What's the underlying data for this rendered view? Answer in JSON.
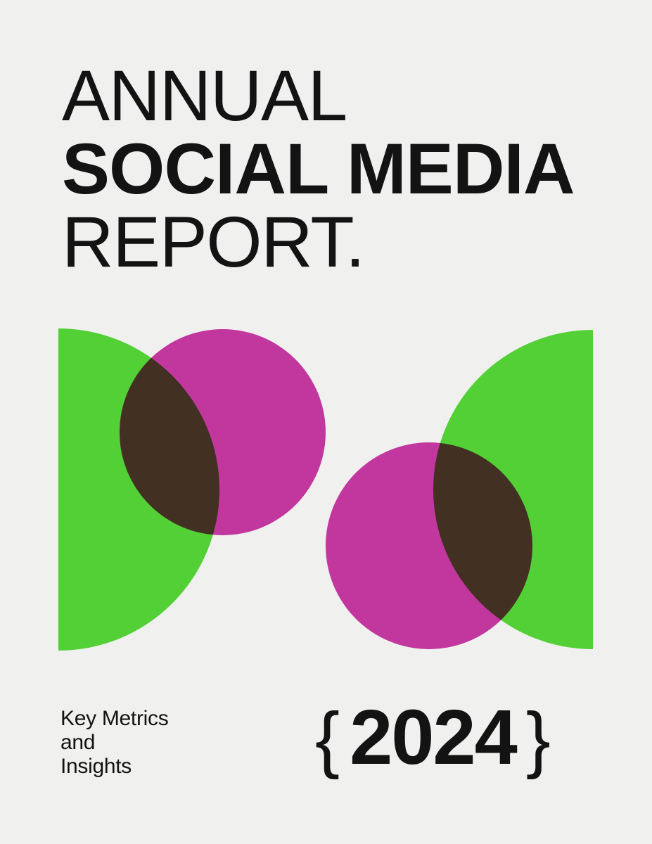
{
  "colors": {
    "background": "#f0f0ee",
    "ink": "#131313",
    "green": "#52d035",
    "magenta": "#ce3aa9"
  },
  "title": {
    "line1": "ANNUAL",
    "line2": "SOCIAL MEDIA",
    "line3": "REPORT."
  },
  "subtitle": {
    "line1": "Key Metrics",
    "line2": "and",
    "line3": "Insights"
  },
  "year": {
    "open_brace": "{",
    "value": "2024",
    "close_brace": "}"
  },
  "graphic": {
    "description": "Two green half-discs facing inward with two overlapping magenta circles; overlaps render dark brown via multiply blend",
    "overlap_color": "#46301f"
  }
}
